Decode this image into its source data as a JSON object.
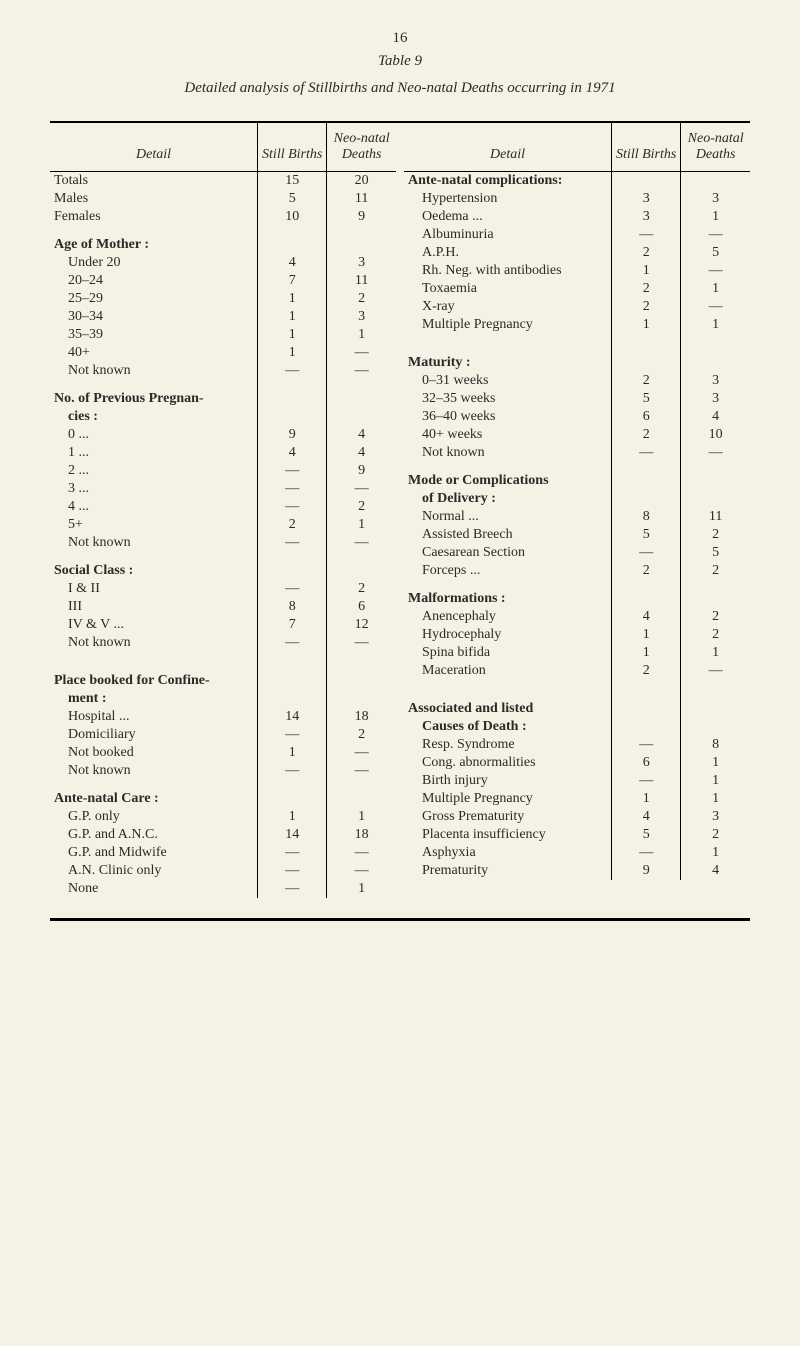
{
  "page_number": "16",
  "table_number": "Table 9",
  "title": "Detailed analysis of Stillbirths and Neo-natal Deaths occurring in 1971",
  "headers": {
    "detail": "Detail",
    "still_births": "Still Births",
    "neo_natal": "Neo-natal Deaths"
  },
  "left": {
    "rows": [
      {
        "label": "Totals",
        "sb": "15",
        "nn": "20",
        "indent": false
      },
      {
        "label": "Males",
        "sb": "5",
        "nn": "11",
        "indent": false
      },
      {
        "label": "Females",
        "sb": "10",
        "nn": "9",
        "indent": false
      },
      {
        "spacer": true
      },
      {
        "label": "Age of Mother :",
        "sb": "",
        "nn": "",
        "bold": true
      },
      {
        "label": "Under 20",
        "sb": "4",
        "nn": "3",
        "indent": true
      },
      {
        "label": "20–24",
        "sb": "7",
        "nn": "11",
        "indent": true
      },
      {
        "label": "25–29",
        "sb": "1",
        "nn": "2",
        "indent": true
      },
      {
        "label": "30–34",
        "sb": "1",
        "nn": "3",
        "indent": true
      },
      {
        "label": "35–39",
        "sb": "1",
        "nn": "1",
        "indent": true
      },
      {
        "label": "40+",
        "sb": "1",
        "nn": "—",
        "indent": true
      },
      {
        "label": "Not known",
        "sb": "—",
        "nn": "—",
        "indent": true
      },
      {
        "spacer": true
      },
      {
        "label": "No. of Previous Pregnan-",
        "sb": "",
        "nn": "",
        "bold": true
      },
      {
        "label": "cies :",
        "sb": "",
        "nn": "",
        "bold": true,
        "indent": true
      },
      {
        "label": "0 ...",
        "sb": "9",
        "nn": "4",
        "indent": true
      },
      {
        "label": "1 ...",
        "sb": "4",
        "nn": "4",
        "indent": true
      },
      {
        "label": "2 ...",
        "sb": "—",
        "nn": "9",
        "indent": true
      },
      {
        "label": "3 ...",
        "sb": "—",
        "nn": "—",
        "indent": true
      },
      {
        "label": "4 ...",
        "sb": "—",
        "nn": "2",
        "indent": true
      },
      {
        "label": "5+",
        "sb": "2",
        "nn": "1",
        "indent": true
      },
      {
        "label": "Not known",
        "sb": "—",
        "nn": "—",
        "indent": true
      },
      {
        "spacer": true
      },
      {
        "label": "Social Class :",
        "sb": "",
        "nn": "",
        "bold": true
      },
      {
        "label": "I & II",
        "sb": "—",
        "nn": "2",
        "indent": true
      },
      {
        "label": "III",
        "sb": "8",
        "nn": "6",
        "indent": true
      },
      {
        "label": "IV & V ...",
        "sb": "7",
        "nn": "12",
        "indent": true
      },
      {
        "label": "Not known",
        "sb": "—",
        "nn": "—",
        "indent": true
      },
      {
        "spacer": true
      },
      {
        "spacer": true
      },
      {
        "label": "Place booked for Confine-",
        "sb": "",
        "nn": "",
        "bold": true
      },
      {
        "label": "ment :",
        "sb": "",
        "nn": "",
        "bold": true,
        "indent": true
      },
      {
        "label": "Hospital ...",
        "sb": "14",
        "nn": "18",
        "indent": true
      },
      {
        "label": "Domiciliary",
        "sb": "—",
        "nn": "2",
        "indent": true
      },
      {
        "label": "Not booked",
        "sb": "1",
        "nn": "—",
        "indent": true
      },
      {
        "label": "Not known",
        "sb": "—",
        "nn": "—",
        "indent": true
      },
      {
        "spacer": true
      },
      {
        "label": "Ante-natal Care :",
        "sb": "",
        "nn": "",
        "bold": true
      },
      {
        "label": "G.P. only",
        "sb": "1",
        "nn": "1",
        "indent": true
      },
      {
        "label": "G.P. and A.N.C.",
        "sb": "14",
        "nn": "18",
        "indent": true
      },
      {
        "label": "G.P. and Midwife",
        "sb": "—",
        "nn": "—",
        "indent": true
      },
      {
        "label": "A.N. Clinic only",
        "sb": "—",
        "nn": "—",
        "indent": true
      },
      {
        "label": "None",
        "sb": "—",
        "nn": "1",
        "indent": true
      }
    ]
  },
  "right": {
    "rows": [
      {
        "label": "Ante-natal complications:",
        "sb": "",
        "nn": "",
        "bold": true
      },
      {
        "label": "Hypertension",
        "sb": "3",
        "nn": "3",
        "indent": true
      },
      {
        "label": "Oedema ...",
        "sb": "3",
        "nn": "1",
        "indent": true
      },
      {
        "label": "Albuminuria",
        "sb": "—",
        "nn": "—",
        "indent": true
      },
      {
        "label": "A.P.H.",
        "sb": "2",
        "nn": "5",
        "indent": true
      },
      {
        "label": "Rh. Neg. with antibodies",
        "sb": "1",
        "nn": "—",
        "indent": true
      },
      {
        "label": "Toxaemia",
        "sb": "2",
        "nn": "1",
        "indent": true
      },
      {
        "label": "X-ray",
        "sb": "2",
        "nn": "—",
        "indent": true
      },
      {
        "label": "Multiple Pregnancy",
        "sb": "1",
        "nn": "1",
        "indent": true
      },
      {
        "spacer": true
      },
      {
        "spacer": true
      },
      {
        "label": "Maturity :",
        "sb": "",
        "nn": "",
        "bold": true
      },
      {
        "label": "0–31 weeks",
        "sb": "2",
        "nn": "3",
        "indent": true
      },
      {
        "label": "32–35 weeks",
        "sb": "5",
        "nn": "3",
        "indent": true
      },
      {
        "label": "36–40 weeks",
        "sb": "6",
        "nn": "4",
        "indent": true
      },
      {
        "label": "40+ weeks",
        "sb": "2",
        "nn": "10",
        "indent": true
      },
      {
        "label": "Not known",
        "sb": "—",
        "nn": "—",
        "indent": true
      },
      {
        "spacer": true
      },
      {
        "label": "Mode or Complications",
        "sb": "",
        "nn": "",
        "bold": true
      },
      {
        "label": "of Delivery :",
        "sb": "",
        "nn": "",
        "bold": true,
        "indent": true
      },
      {
        "label": "Normal ...",
        "sb": "8",
        "nn": "11",
        "indent": true
      },
      {
        "label": "Assisted Breech",
        "sb": "5",
        "nn": "2",
        "indent": true
      },
      {
        "label": "Caesarean Section",
        "sb": "—",
        "nn": "5",
        "indent": true
      },
      {
        "label": "Forceps ...",
        "sb": "2",
        "nn": "2",
        "indent": true
      },
      {
        "spacer": true
      },
      {
        "label": "Malformations :",
        "sb": "",
        "nn": "",
        "bold": true
      },
      {
        "label": "Anencephaly",
        "sb": "4",
        "nn": "2",
        "indent": true
      },
      {
        "label": "Hydrocephaly",
        "sb": "1",
        "nn": "2",
        "indent": true
      },
      {
        "label": "Spina bifida",
        "sb": "1",
        "nn": "1",
        "indent": true
      },
      {
        "label": "Maceration",
        "sb": "2",
        "nn": "—",
        "indent": true
      },
      {
        "spacer": true
      },
      {
        "spacer": true
      },
      {
        "label": "Associated and listed",
        "sb": "",
        "nn": "",
        "bold": true
      },
      {
        "label": "Causes of Death :",
        "sb": "",
        "nn": "",
        "bold": true,
        "indent": true
      },
      {
        "label": "Resp. Syndrome",
        "sb": "—",
        "nn": "8",
        "indent": true
      },
      {
        "label": "Cong. abnormalities",
        "sb": "6",
        "nn": "1",
        "indent": true
      },
      {
        "label": "Birth injury",
        "sb": "—",
        "nn": "1",
        "indent": true
      },
      {
        "label": "Multiple Pregnancy",
        "sb": "1",
        "nn": "1",
        "indent": true
      },
      {
        "label": "Gross Prematurity",
        "sb": "4",
        "nn": "3",
        "indent": true
      },
      {
        "label": "Placenta insufficiency",
        "sb": "5",
        "nn": "2",
        "indent": true
      },
      {
        "label": "Asphyxia",
        "sb": "—",
        "nn": "1",
        "indent": true
      },
      {
        "label": "Prematurity",
        "sb": "9",
        "nn": "4",
        "indent": true
      }
    ]
  }
}
